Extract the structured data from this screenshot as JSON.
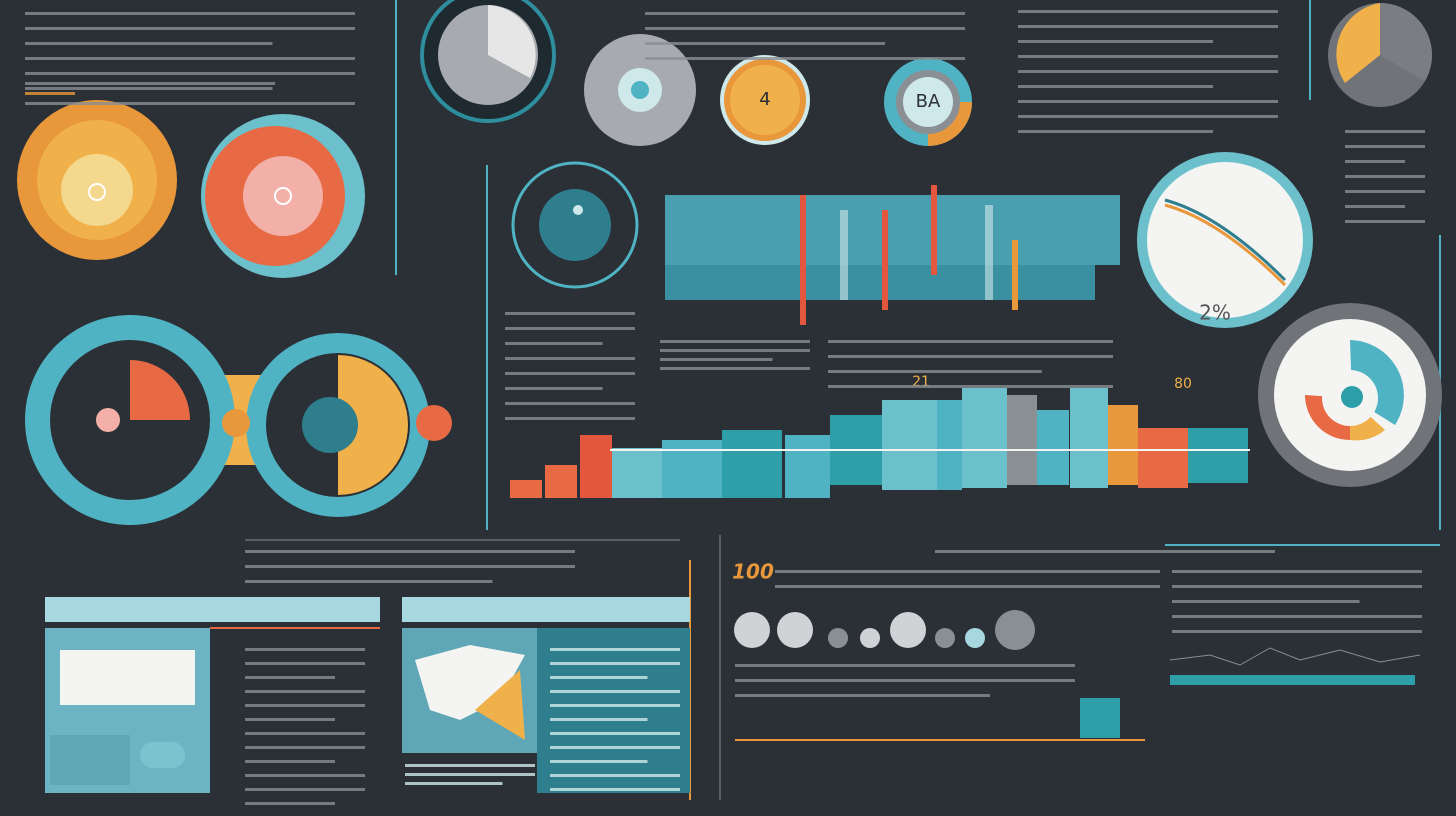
{
  "labels": {
    "gauge_center": "4",
    "badge": "BA",
    "panel_number": "100",
    "dial_value": "2%",
    "marker_a": "21",
    "marker_b": "80"
  }
}
